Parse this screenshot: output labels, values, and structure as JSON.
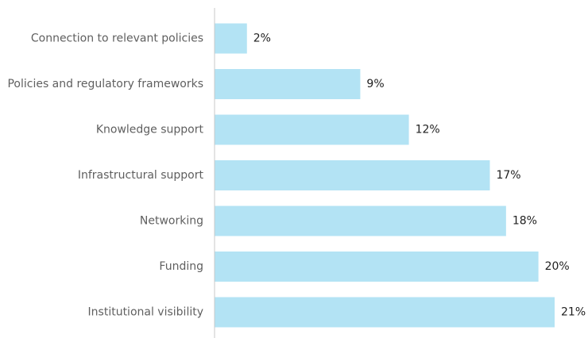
{
  "chart_data": {
    "type": "bar",
    "orientation": "horizontal",
    "categories": [
      "Connection to relevant policies",
      "Policies and regulatory frameworks",
      "Knowledge support",
      "Infrastructural support",
      "Networking",
      "Funding",
      "Institutional visibility"
    ],
    "values": [
      2,
      9,
      12,
      17,
      18,
      20,
      21
    ],
    "value_labels": [
      "2%",
      "9%",
      "12%",
      "17%",
      "18%",
      "20%",
      "21%"
    ],
    "xlim": [
      0,
      21
    ],
    "grid": false,
    "legend": "none",
    "colors": {
      "bar": "#b3e3f4",
      "axis": "#c8c8c8",
      "category_text": "#5f5f5f",
      "value_text": "#1f1f1f"
    }
  }
}
